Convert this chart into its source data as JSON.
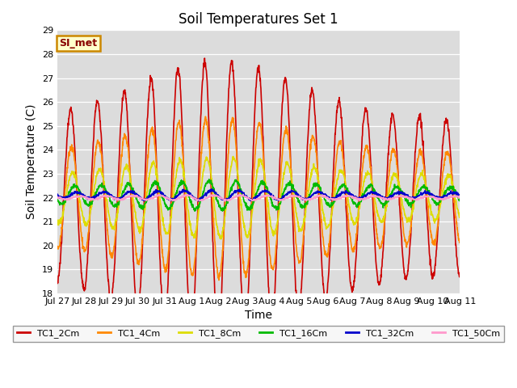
{
  "title": "Soil Temperatures Set 1",
  "xlabel": "Time",
  "ylabel": "Soil Temperature (C)",
  "ylim": [
    18.0,
    29.0
  ],
  "yticks": [
    18.0,
    19.0,
    20.0,
    21.0,
    22.0,
    23.0,
    24.0,
    25.0,
    26.0,
    27.0,
    28.0,
    29.0
  ],
  "bg_color": "#dcdcdc",
  "series_names": [
    "TC1_2Cm",
    "TC1_4Cm",
    "TC1_8Cm",
    "TC1_16Cm",
    "TC1_32Cm",
    "TC1_50Cm"
  ],
  "series_colors": [
    "#cc0000",
    "#ff8800",
    "#dddd00",
    "#00bb00",
    "#0000cc",
    "#ff99cc"
  ],
  "series_lw": [
    1.2,
    1.2,
    1.2,
    1.2,
    1.2,
    1.2
  ],
  "legend_label": "SI_met",
  "legend_bg": "#ffffcc",
  "legend_border": "#cc8800",
  "legend_text_color": "#880000",
  "n_days": 15,
  "points_per_day": 96,
  "tick_labels": [
    "Jul 27",
    "Jul 28",
    "Jul 29",
    "Jul 30",
    "Jul 31",
    "Aug 1",
    "Aug 2",
    "Aug 3",
    "Aug 4",
    "Aug 5",
    "Aug 6",
    "Aug 7",
    "Aug 8",
    "Aug 9",
    "Aug 10",
    "Aug 11"
  ],
  "tick_positions": [
    0,
    1,
    2,
    3,
    4,
    5,
    6,
    7,
    8,
    9,
    10,
    11,
    12,
    13,
    14,
    15
  ]
}
